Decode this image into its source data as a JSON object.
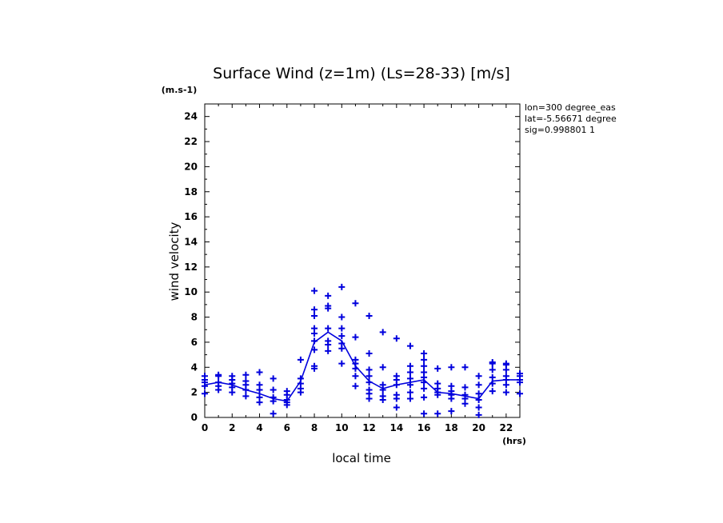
{
  "chart_data": {
    "type": "scatter",
    "title": "Surface Wind (z=1m) (Ls=28-33) [m/s]",
    "xlabel": "local time",
    "ylabel": "wind velocity",
    "x_unit": "(hrs)",
    "y_unit": "(m.s-1)",
    "xlim": [
      0,
      23
    ],
    "ylim": [
      0,
      25
    ],
    "x_ticks": [
      0,
      2,
      4,
      6,
      8,
      10,
      12,
      14,
      16,
      18,
      20,
      22
    ],
    "y_ticks": [
      0,
      2,
      4,
      6,
      8,
      10,
      12,
      14,
      16,
      18,
      20,
      22,
      24
    ],
    "info": [
      "lon=300 degree_eas",
      "lat=-5.56671 degree",
      "sig=0.998801 1"
    ],
    "color": "#0000dd",
    "grid": false,
    "series": [
      {
        "style": "markers-plus",
        "points": [
          [
            0,
            3.3
          ],
          [
            0,
            3.0
          ],
          [
            0,
            2.8
          ],
          [
            0,
            2.5
          ],
          [
            0,
            1.9
          ],
          [
            1,
            3.4
          ],
          [
            1,
            3.3
          ],
          [
            1,
            2.8
          ],
          [
            1,
            2.5
          ],
          [
            1,
            2.2
          ],
          [
            2,
            3.3
          ],
          [
            2,
            3.0
          ],
          [
            2,
            2.7
          ],
          [
            2,
            2.4
          ],
          [
            2,
            2.0
          ],
          [
            3,
            3.4
          ],
          [
            3,
            2.9
          ],
          [
            3,
            2.6
          ],
          [
            3,
            2.2
          ],
          [
            3,
            1.7
          ],
          [
            4,
            3.6
          ],
          [
            4,
            2.6
          ],
          [
            4,
            2.2
          ],
          [
            4,
            1.6
          ],
          [
            4,
            1.2
          ],
          [
            5,
            3.1
          ],
          [
            5,
            2.2
          ],
          [
            5,
            1.6
          ],
          [
            5,
            1.3
          ],
          [
            5,
            0.3
          ],
          [
            6,
            2.1
          ],
          [
            6,
            1.8
          ],
          [
            6,
            1.4
          ],
          [
            6,
            1.2
          ],
          [
            6,
            1.0
          ],
          [
            7,
            4.6
          ],
          [
            7,
            3.1
          ],
          [
            7,
            2.7
          ],
          [
            7,
            2.3
          ],
          [
            7,
            2.0
          ],
          [
            8,
            10.1
          ],
          [
            8,
            8.6
          ],
          [
            8,
            8.1
          ],
          [
            8,
            7.1
          ],
          [
            8,
            6.7
          ],
          [
            8,
            6.1
          ],
          [
            8,
            5.4
          ],
          [
            8,
            4.1
          ],
          [
            8,
            3.9
          ],
          [
            9,
            9.7
          ],
          [
            9,
            8.9
          ],
          [
            9,
            8.7
          ],
          [
            9,
            7.1
          ],
          [
            9,
            6.1
          ],
          [
            9,
            5.8
          ],
          [
            9,
            5.3
          ],
          [
            10,
            10.4
          ],
          [
            10,
            8.0
          ],
          [
            10,
            7.1
          ],
          [
            10,
            6.5
          ],
          [
            10,
            5.9
          ],
          [
            10,
            5.5
          ],
          [
            10,
            4.3
          ],
          [
            11,
            9.1
          ],
          [
            11,
            6.4
          ],
          [
            11,
            4.6
          ],
          [
            11,
            4.3
          ],
          [
            11,
            3.9
          ],
          [
            11,
            3.3
          ],
          [
            11,
            2.5
          ],
          [
            12,
            8.1
          ],
          [
            12,
            5.1
          ],
          [
            12,
            3.8
          ],
          [
            12,
            3.3
          ],
          [
            12,
            2.8
          ],
          [
            12,
            2.2
          ],
          [
            12,
            1.9
          ],
          [
            12,
            1.5
          ],
          [
            13,
            6.8
          ],
          [
            13,
            4.0
          ],
          [
            13,
            2.6
          ],
          [
            13,
            2.2
          ],
          [
            13,
            1.7
          ],
          [
            13,
            1.4
          ],
          [
            14,
            6.3
          ],
          [
            14,
            3.3
          ],
          [
            14,
            3.0
          ],
          [
            14,
            2.6
          ],
          [
            14,
            1.8
          ],
          [
            14,
            1.5
          ],
          [
            14,
            0.8
          ],
          [
            15,
            5.7
          ],
          [
            15,
            4.1
          ],
          [
            15,
            3.6
          ],
          [
            15,
            3.1
          ],
          [
            15,
            2.6
          ],
          [
            15,
            2.0
          ],
          [
            15,
            1.5
          ],
          [
            16,
            5.1
          ],
          [
            16,
            4.6
          ],
          [
            16,
            4.1
          ],
          [
            16,
            3.6
          ],
          [
            16,
            3.2
          ],
          [
            16,
            2.8
          ],
          [
            16,
            2.3
          ],
          [
            16,
            1.6
          ],
          [
            16,
            0.3
          ],
          [
            17,
            3.9
          ],
          [
            17,
            2.7
          ],
          [
            17,
            2.3
          ],
          [
            17,
            2.0
          ],
          [
            17,
            1.8
          ],
          [
            17,
            0.3
          ],
          [
            18,
            4.0
          ],
          [
            18,
            2.5
          ],
          [
            18,
            2.1
          ],
          [
            18,
            1.8
          ],
          [
            18,
            1.5
          ],
          [
            18,
            0.5
          ],
          [
            19,
            4.0
          ],
          [
            19,
            2.4
          ],
          [
            19,
            1.8
          ],
          [
            19,
            1.5
          ],
          [
            19,
            1.1
          ],
          [
            20,
            3.3
          ],
          [
            20,
            2.6
          ],
          [
            20,
            1.9
          ],
          [
            20,
            1.4
          ],
          [
            20,
            0.8
          ],
          [
            20,
            0.2
          ],
          [
            21,
            4.4
          ],
          [
            21,
            4.3
          ],
          [
            21,
            3.8
          ],
          [
            21,
            3.2
          ],
          [
            21,
            2.7
          ],
          [
            21,
            2.1
          ],
          [
            22,
            4.3
          ],
          [
            22,
            4.2
          ],
          [
            22,
            3.8
          ],
          [
            22,
            3.3
          ],
          [
            22,
            3.0
          ],
          [
            22,
            2.6
          ],
          [
            22,
            2.0
          ],
          [
            23,
            3.5
          ],
          [
            23,
            3.3
          ],
          [
            23,
            3.0
          ],
          [
            23,
            2.8
          ],
          [
            23,
            1.9
          ]
        ]
      },
      {
        "style": "line",
        "x": [
          0,
          1,
          2,
          3,
          4,
          5,
          6,
          7,
          8,
          9,
          10,
          11,
          12,
          13,
          14,
          15,
          16,
          17,
          18,
          19,
          20,
          21,
          22,
          23
        ],
        "values": [
          2.6,
          2.8,
          2.6,
          2.2,
          1.9,
          1.5,
          1.3,
          2.9,
          6.0,
          6.8,
          6.1,
          4.1,
          2.9,
          2.3,
          2.6,
          2.8,
          3.0,
          2.0,
          1.9,
          1.7,
          1.5,
          2.9,
          3.0,
          3.0
        ]
      }
    ]
  }
}
